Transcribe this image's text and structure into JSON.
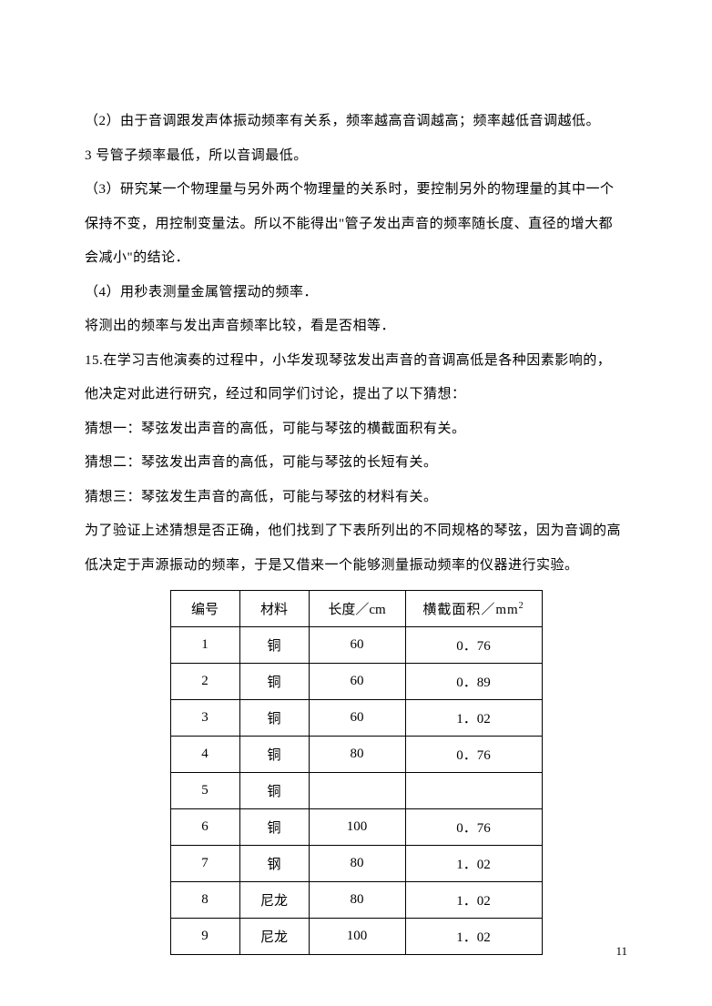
{
  "paragraphs": {
    "p1": "（2）由于音调跟发声体振动频率有关系，频率越高音调越高；频率越低音调越低。",
    "p2": "3 号管子频率最低，所以音调最低。",
    "p3": "（3）研究某一个物理量与另外两个物理量的关系时，要控制另外的物理量的其中一个",
    "p4": "保持不变，用控制变量法。所以不能得出\"管子发出声音的频率随长度、直径的增大都",
    "p5": "会减小\"的结论．",
    "p6": "（4）用秒表测量金属管摆动的频率．",
    "p7": "将测出的频率与发出声音频率比较，看是否相等．",
    "p8": "15.在学习吉他演奏的过程中，小华发现琴弦发出声音的音调高低是各种因素影响的，",
    "p9": "他决定对此进行研究，经过和同学们讨论，提出了以下猜想：",
    "p10": "猜想一：琴弦发出声音的高低，可能与琴弦的横截面积有关。",
    "p11": "猜想二：琴弦发出声音的高低，可能与琴弦的长短有关。",
    "p12": "猜想三：琴弦发生声音的高低，可能与琴弦的材料有关。",
    "p13": "为了验证上述猜想是否正确，他们找到了下表所列出的不同规格的琴弦，因为音调的高",
    "p14": "低决定于声源振动的频率，于是又借来一个能够测量振动频率的仪器进行实验。"
  },
  "table": {
    "headers": {
      "id": "编号",
      "material": "材料",
      "length": "长度／cm",
      "area_prefix": "横截面积／mm",
      "area_sup": "2"
    },
    "rows": [
      {
        "id": "1",
        "material": "铜",
        "length": "60",
        "area": "0．76"
      },
      {
        "id": "2",
        "material": "铜",
        "length": "60",
        "area": "0．89"
      },
      {
        "id": "3",
        "material": "铜",
        "length": "60",
        "area": "1．02"
      },
      {
        "id": "4",
        "material": "铜",
        "length": "80",
        "area": "0．76"
      },
      {
        "id": "5",
        "material": "铜",
        "length": "",
        "area": ""
      },
      {
        "id": "6",
        "material": "铜",
        "length": "100",
        "area": "0．76"
      },
      {
        "id": "7",
        "material": "钢",
        "length": "80",
        "area": "1．02"
      },
      {
        "id": "8",
        "material": "尼龙",
        "length": "80",
        "area": "1．02"
      },
      {
        "id": "9",
        "material": "尼龙",
        "length": "100",
        "area": "1．02"
      }
    ]
  },
  "page_number": "11"
}
